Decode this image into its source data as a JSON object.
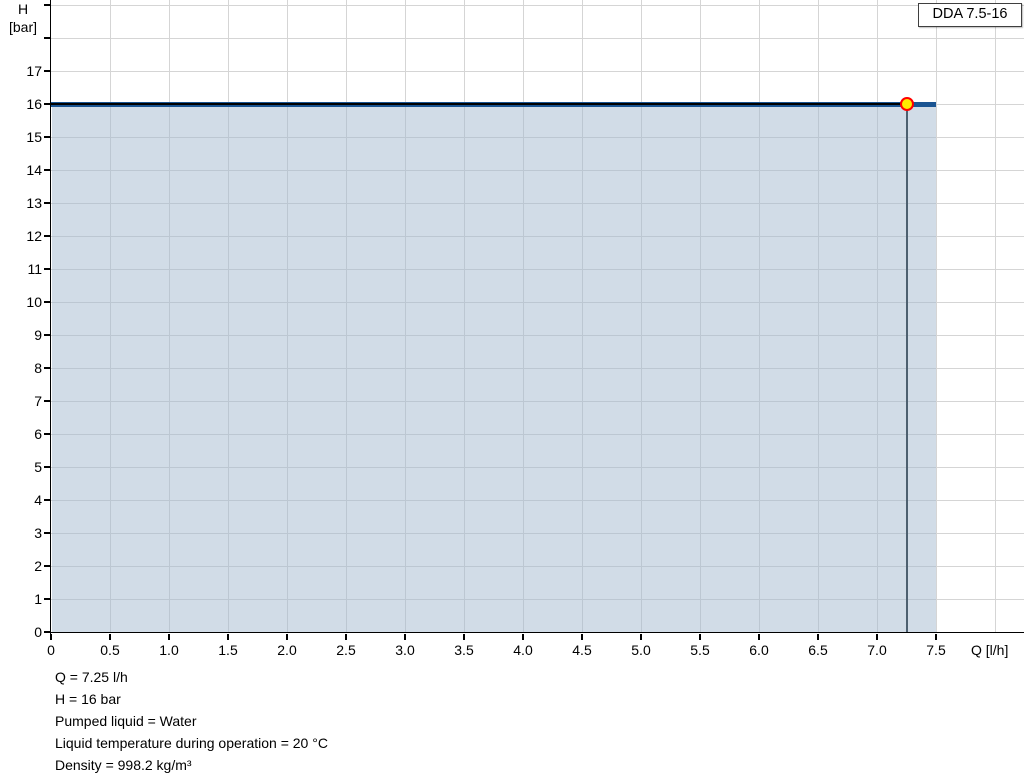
{
  "model_box": {
    "label": "DDA 7.5-16"
  },
  "chart_data": {
    "type": "area",
    "title": "DDA 7.5-16 pump performance curve",
    "x_axis": {
      "label": "Q [l/h]",
      "min": 0,
      "max": 8.24,
      "tick_step": 0.5,
      "ticks": [
        0,
        0.5,
        1.0,
        1.5,
        2.0,
        2.5,
        3.0,
        3.5,
        4.0,
        4.5,
        5.0,
        5.5,
        6.0,
        6.5,
        7.0,
        7.5
      ],
      "tick_labels": [
        "0",
        "0.5",
        "1.0",
        "1.5",
        "2.0",
        "2.5",
        "3.0",
        "3.5",
        "4.0",
        "4.5",
        "5.0",
        "5.5",
        "6.0",
        "6.5",
        "7.0",
        "7.5"
      ],
      "grid_extends_to": 8.0
    },
    "y_axis": {
      "label_line1": "H",
      "label_line2": "[bar]",
      "min": 0,
      "max": 19.15,
      "tick_step": 1,
      "ticks": [
        0,
        1,
        2,
        3,
        4,
        5,
        6,
        7,
        8,
        9,
        10,
        11,
        12,
        13,
        14,
        15,
        16,
        17,
        18,
        19
      ],
      "tick_labels": [
        "0",
        "1",
        "2",
        "3",
        "4",
        "5",
        "6",
        "7",
        "8",
        "9",
        "10",
        "11",
        "12",
        "13",
        "14",
        "15",
        "16",
        "17"
      ],
      "grid": true
    },
    "series": [
      {
        "name": "max-pressure-curve",
        "points": [
          {
            "x": 0,
            "y": 16
          },
          {
            "x": 7.5,
            "y": 16
          }
        ],
        "color": "#1a5492"
      },
      {
        "name": "selected-range-overlay",
        "points": [
          {
            "x": 0,
            "y": 16
          },
          {
            "x": 7.25,
            "y": 16
          }
        ],
        "color": "#000000"
      }
    ],
    "area": {
      "under_curve": true,
      "from_x": 0,
      "to_x": 7.5,
      "fill": "rgba(164,186,208,0.5)"
    },
    "duty_point": {
      "x": 7.25,
      "y": 16,
      "marker_fill": "#ffeb00",
      "marker_ring": "#ff0000",
      "drop_line_color": "#4d6070"
    },
    "grid_color": "#d5d5d5",
    "axis_color": "#000000",
    "legend": "none"
  },
  "info_lines": [
    "Q = 7.25 l/h",
    "H = 16 bar",
    "Pumped liquid = Water",
    "Liquid temperature during operation = 20 °C",
    "Density = 998.2 kg/m³"
  ]
}
